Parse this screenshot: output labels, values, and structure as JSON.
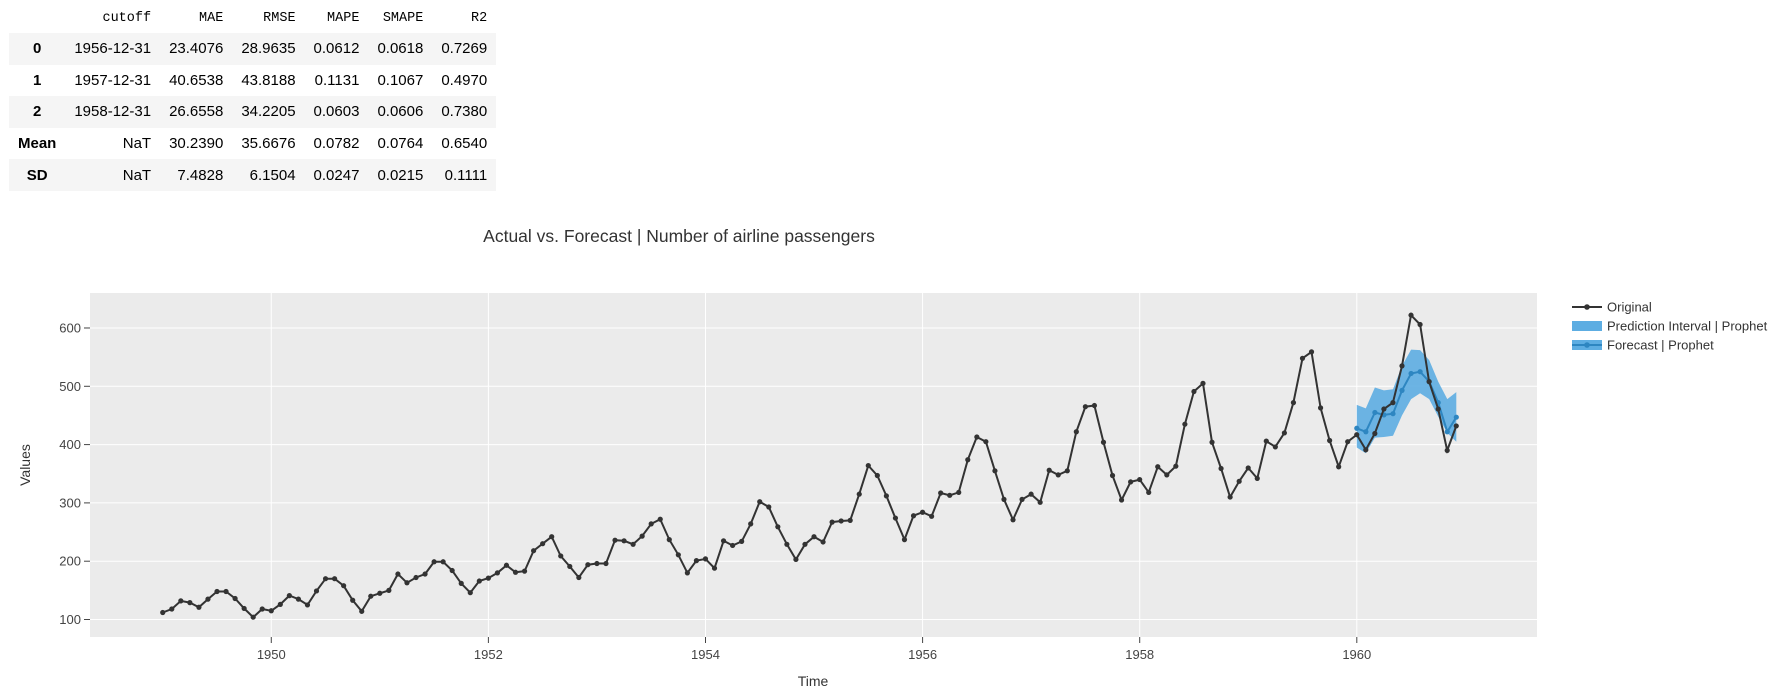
{
  "metrics_table": {
    "columns": [
      "",
      "cutoff",
      "MAE",
      "RMSE",
      "MAPE",
      "SMAPE",
      "R2"
    ],
    "rows": [
      [
        "0",
        "1956-12-31",
        "23.4076",
        "28.9635",
        "0.0612",
        "0.0618",
        "0.7269"
      ],
      [
        "1",
        "1957-12-31",
        "40.6538",
        "43.8188",
        "0.1131",
        "0.1067",
        "0.4970"
      ],
      [
        "2",
        "1958-12-31",
        "26.6558",
        "34.2205",
        "0.0603",
        "0.0606",
        "0.7380"
      ],
      [
        "Mean",
        "NaT",
        "30.2390",
        "35.6676",
        "0.0782",
        "0.0764",
        "0.6540"
      ],
      [
        "SD",
        "NaT",
        "7.4828",
        "6.1504",
        "0.0247",
        "0.0215",
        "0.1111"
      ]
    ]
  },
  "chart_data": {
    "type": "line",
    "title": "Actual vs. Forecast | Number of airline passengers",
    "xlabel": "Time",
    "ylabel": "Values",
    "xlim": [
      1948.33,
      1961.66
    ],
    "ylim": [
      70,
      660
    ],
    "x_ticks": [
      1950,
      1952,
      1954,
      1956,
      1958,
      1960
    ],
    "x_tick_labels": [
      "1950",
      "1952",
      "1954",
      "1956",
      "1958",
      "1960"
    ],
    "y_ticks": [
      100,
      200,
      300,
      400,
      500,
      600
    ],
    "y_tick_labels": [
      "100",
      "200",
      "300",
      "400",
      "500",
      "600"
    ],
    "grid": true,
    "legend_position": "right",
    "plot_background": "#ebebeb",
    "series": [
      {
        "name": "Original",
        "color": "#333333",
        "x_start": 1949.0,
        "step": 0.08333,
        "values": [
          112,
          118,
          132,
          129,
          121,
          135,
          148,
          148,
          136,
          119,
          104,
          118,
          115,
          126,
          141,
          135,
          125,
          149,
          170,
          170,
          158,
          133,
          114,
          140,
          145,
          150,
          178,
          163,
          172,
          178,
          199,
          199,
          184,
          162,
          146,
          166,
          171,
          180,
          193,
          181,
          183,
          218,
          230,
          242,
          209,
          191,
          172,
          194,
          196,
          196,
          236,
          235,
          229,
          243,
          264,
          272,
          237,
          211,
          180,
          201,
          204,
          188,
          235,
          227,
          234,
          264,
          302,
          293,
          259,
          229,
          203,
          229,
          242,
          233,
          267,
          269,
          270,
          315,
          364,
          347,
          312,
          274,
          237,
          278,
          284,
          277,
          317,
          313,
          318,
          374,
          413,
          405,
          355,
          306,
          271,
          306,
          315,
          301,
          356,
          348,
          355,
          422,
          465,
          467,
          404,
          347,
          305,
          336,
          340,
          318,
          362,
          348,
          363,
          435,
          491,
          505,
          404,
          359,
          310,
          337,
          360,
          342,
          406,
          396,
          420,
          472,
          548,
          559,
          463,
          407,
          362,
          405,
          417,
          391,
          419,
          461,
          472,
          535,
          622,
          606,
          508,
          461,
          390,
          432
        ]
      },
      {
        "name": "Prediction Interval | Prophet",
        "color": "#5dade2",
        "x_start": 1960.0,
        "step": 0.08333,
        "lower": [
          395,
          385,
          412,
          413,
          415,
          450,
          478,
          488,
          478,
          448,
          420,
          405
        ],
        "upper": [
          468,
          462,
          498,
          493,
          495,
          535,
          563,
          562,
          545,
          508,
          478,
          490
        ]
      },
      {
        "name": "Forecast | Prophet",
        "color": "#2e86c1",
        "x_start": 1960.0,
        "step": 0.08333,
        "values": [
          428,
          422,
          455,
          451,
          453,
          493,
          522,
          525,
          508,
          472,
          422,
          447
        ]
      }
    ]
  }
}
